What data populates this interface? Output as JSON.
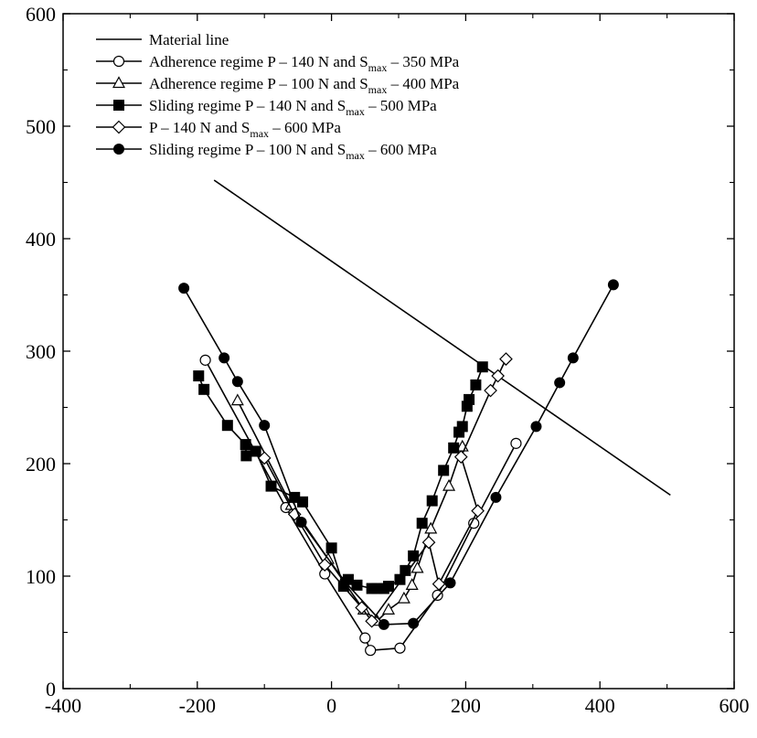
{
  "chart_data": {
    "type": "line",
    "title": "",
    "xlabel": "",
    "ylabel": "",
    "xlim": [
      -400,
      600
    ],
    "ylim": [
      0,
      600
    ],
    "xticks": [
      -400,
      -200,
      0,
      200,
      400,
      600
    ],
    "yticks": [
      0,
      100,
      200,
      300,
      400,
      500,
      600
    ],
    "xtick_labels": [
      "-400",
      "-200",
      "0",
      "200",
      "400",
      "600"
    ],
    "ytick_labels": [
      "0",
      "100",
      "200",
      "300",
      "400",
      "500",
      "600"
    ],
    "grid": false,
    "legend_position": "top-left",
    "series": [
      {
        "name": "Material line",
        "marker": "none",
        "x": [
          -175,
          505
        ],
        "y": [
          452,
          172
        ]
      },
      {
        "name": "Adherence regime P – 140 N and S_max – 350 MPa",
        "marker": "open-circle",
        "x": [
          -188,
          -68,
          -10,
          50,
          58,
          102,
          158,
          212,
          275
        ],
        "y": [
          292,
          161,
          102,
          45,
          34,
          36,
          83,
          147,
          218
        ]
      },
      {
        "name": "Adherence regime P – 100 N and S_max – 400 MPa",
        "marker": "open-triangle",
        "x": [
          -140,
          -60,
          -5,
          48,
          68,
          85,
          108,
          120,
          128,
          148,
          175,
          195
        ],
        "y": [
          256,
          163,
          115,
          70,
          60,
          70,
          80,
          92,
          107,
          142,
          180,
          215
        ]
      },
      {
        "name": "Sliding regime P – 140 N and S_max – 500 MPa",
        "marker": "filled-square",
        "x": [
          -198,
          -190,
          -155,
          -128,
          -127,
          -113,
          -90,
          -55,
          -43,
          0,
          18,
          25,
          38,
          60,
          68,
          78,
          85,
          102,
          110,
          122,
          135,
          150,
          167,
          182,
          190,
          195,
          202,
          205,
          215,
          225
        ],
        "y": [
          278,
          266,
          234,
          217,
          207,
          211,
          180,
          170,
          166,
          125,
          91,
          97,
          92,
          89,
          89,
          89,
          91,
          97,
          105,
          118,
          147,
          167,
          194,
          214,
          228,
          233,
          251,
          257,
          270,
          286
        ]
      },
      {
        "name": "P – 140 N and S_max – 600 MPa",
        "marker": "open-diamond",
        "x": [
          -100,
          -55,
          -10,
          45,
          60,
          145,
          160,
          218,
          193,
          237,
          248,
          260
        ],
        "y": [
          205,
          155,
          110,
          72,
          60,
          130,
          93,
          158,
          206,
          265,
          278,
          293
        ]
      },
      {
        "name": "Sliding regime P – 100 N and S_max – 600 MPa",
        "marker": "filled-circle",
        "x": [
          -220,
          -160,
          -140,
          -100,
          -45,
          20,
          78,
          122,
          177,
          245,
          305,
          340,
          360,
          420
        ],
        "y": [
          356,
          294,
          273,
          234,
          148,
          95,
          57,
          58,
          94,
          170,
          233,
          272,
          294,
          359
        ]
      }
    ]
  },
  "legend": [
    {
      "pre": "Material line",
      "sub": "",
      "post": ""
    },
    {
      "pre": "Adherence regime P – 140 N and S",
      "sub": "max",
      "post": " – 350 MPa"
    },
    {
      "pre": "Adherence regime P – 100 N and S",
      "sub": "max",
      "post": " – 400 MPa"
    },
    {
      "pre": "Sliding regime P – 140 N and S",
      "sub": "max",
      "post": " – 500 MPa"
    },
    {
      "pre": " P – 140 N and S",
      "sub": "max",
      "post": " – 600 MPa"
    },
    {
      "pre": "Sliding regime P – 100 N and S",
      "sub": "max",
      "post": " – 600 MPa"
    }
  ]
}
